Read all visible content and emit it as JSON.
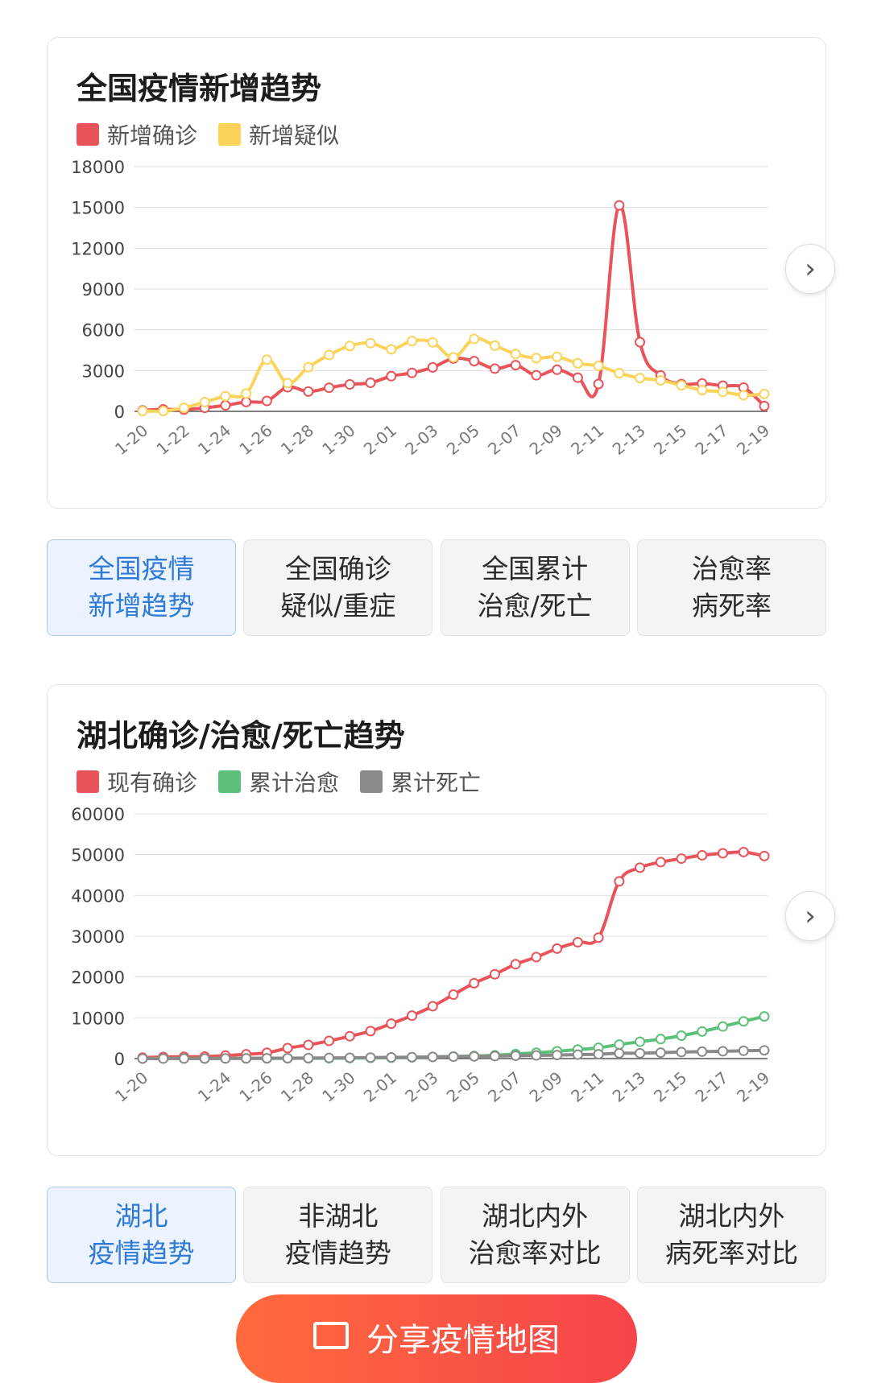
{
  "charts": [
    {
      "title": "全国疫情新增趋势",
      "legend": [
        {
          "label": "新增确诊",
          "color": "#e8545a"
        },
        {
          "label": "新增疑似",
          "color": "#fbd35b"
        }
      ],
      "next_icon": "chevron-right-icon"
    },
    {
      "title": "湖北确诊/治愈/死亡趋势",
      "legend": [
        {
          "label": "现有确诊",
          "color": "#e8545a"
        },
        {
          "label": "累计治愈",
          "color": "#5cc07a"
        },
        {
          "label": "累计死亡",
          "color": "#8a8a8a"
        }
      ],
      "next_icon": "chevron-right-icon"
    }
  ],
  "chart_data": [
    {
      "type": "line",
      "title": "全国疫情新增趋势",
      "x": [
        "1-20",
        "1-21",
        "1-22",
        "1-23",
        "1-24",
        "1-25",
        "1-26",
        "1-27",
        "1-28",
        "1-29",
        "1-30",
        "1-31",
        "2-01",
        "2-02",
        "2-03",
        "2-04",
        "2-05",
        "2-06",
        "2-07",
        "2-08",
        "2-09",
        "2-10",
        "2-11",
        "2-12",
        "2-13",
        "2-14",
        "2-15",
        "2-16",
        "2-17",
        "2-18",
        "2-19"
      ],
      "x_tick_labels": [
        "1-20",
        "1-22",
        "1-24",
        "1-26",
        "1-28",
        "1-30",
        "2-01",
        "2-03",
        "2-05",
        "2-07",
        "2-09",
        "2-11",
        "2-13",
        "2-15",
        "2-17",
        "2-19"
      ],
      "series": [
        {
          "name": "新增确诊",
          "color": "#e8545a",
          "values": [
            77,
            149,
            131,
            259,
            444,
            688,
            769,
            1771,
            1459,
            1737,
            1982,
            2102,
            2590,
            2829,
            3235,
            3887,
            3694,
            3143,
            3399,
            2656,
            3062,
            2478,
            2015,
            15152,
            5090,
            2641,
            2009,
            2048,
            1886,
            1749,
            394
          ]
        },
        {
          "name": "新增疑似",
          "color": "#fbd35b",
          "values": [
            27,
            27,
            257,
            680,
            1118,
            1309,
            3806,
            2077,
            3248,
            4148,
            4812,
            5019,
            4562,
            5173,
            5072,
            3971,
            5328,
            4833,
            4214,
            3916,
            4008,
            3536,
            3342,
            2807,
            2450,
            2277,
            1918,
            1563,
            1432,
            1185,
            1277
          ]
        }
      ],
      "ylim": [
        0,
        18000
      ],
      "yticks": [
        0,
        3000,
        6000,
        9000,
        12000,
        15000,
        18000
      ],
      "grid": true,
      "legend_position": "top-left"
    },
    {
      "type": "line",
      "title": "湖北确诊/治愈/死亡趋势",
      "x": [
        "1-20",
        "1-21",
        "1-22",
        "1-23",
        "1-24",
        "1-25",
        "1-26",
        "1-27",
        "1-28",
        "1-29",
        "1-30",
        "1-31",
        "2-01",
        "2-02",
        "2-03",
        "2-04",
        "2-05",
        "2-06",
        "2-07",
        "2-08",
        "2-09",
        "2-10",
        "2-11",
        "2-12",
        "2-13",
        "2-14",
        "2-15",
        "2-16",
        "2-17",
        "2-18",
        "2-19"
      ],
      "x_tick_labels": [
        "1-20",
        "1-24",
        "1-26",
        "1-28",
        "1-30",
        "2-01",
        "2-03",
        "2-05",
        "2-07",
        "2-09",
        "2-11",
        "2-13",
        "2-15",
        "2-17",
        "2-19"
      ],
      "series": [
        {
          "name": "现有确诊",
          "color": "#e8545a",
          "values": [
            239,
            399,
            444,
            494,
            729,
            1052,
            1423,
            2567,
            3349,
            4334,
            5486,
            6738,
            8565,
            10532,
            12839,
            15679,
            18483,
            20677,
            23139,
            24881,
            26965,
            28532,
            29659,
            43455,
            46806,
            48175,
            49030,
            49847,
            50338,
            50633,
            49665
          ]
        },
        {
          "name": "累计治愈",
          "color": "#5cc07a",
          "values": [
            25,
            25,
            28,
            31,
            32,
            44,
            47,
            60,
            80,
            90,
            116,
            166,
            215,
            295,
            396,
            520,
            633,
            817,
            1115,
            1439,
            1795,
            2222,
            2639,
            3441,
            4131,
            4774,
            5623,
            6639,
            7862,
            9128,
            10337
          ]
        },
        {
          "name": "累计死亡",
          "color": "#8a8a8a",
          "values": [
            6,
            9,
            17,
            24,
            39,
            52,
            76,
            100,
            125,
            162,
            204,
            249,
            294,
            350,
            414,
            479,
            549,
            618,
            699,
            780,
            871,
            974,
            1068,
            1310,
            1318,
            1457,
            1596,
            1696,
            1789,
            1921,
            2029
          ]
        }
      ],
      "ylim": [
        0,
        60000
      ],
      "yticks": [
        0,
        10000,
        20000,
        30000,
        40000,
        50000,
        60000
      ],
      "grid": true,
      "legend_position": "top-left"
    }
  ],
  "tabs_national": [
    {
      "line1": "全国疫情",
      "line2": "新增趋势",
      "active": true
    },
    {
      "line1": "全国确诊",
      "line2": "疑似/重症",
      "active": false
    },
    {
      "line1": "全国累计",
      "line2": "治愈/死亡",
      "active": false
    },
    {
      "line1": "治愈率",
      "line2": "病死率",
      "active": false
    }
  ],
  "tabs_hubei": [
    {
      "line1": "湖北",
      "line2": "疫情趋势",
      "active": true
    },
    {
      "line1": "非湖北",
      "line2": "疫情趋势",
      "active": false
    },
    {
      "line1": "湖北内外",
      "line2": "治愈率对比",
      "active": false
    },
    {
      "line1": "湖北内外",
      "line2": "病死率对比",
      "active": false
    }
  ],
  "share_button": {
    "label": "分享疫情地图",
    "icon": "share-icon"
  }
}
